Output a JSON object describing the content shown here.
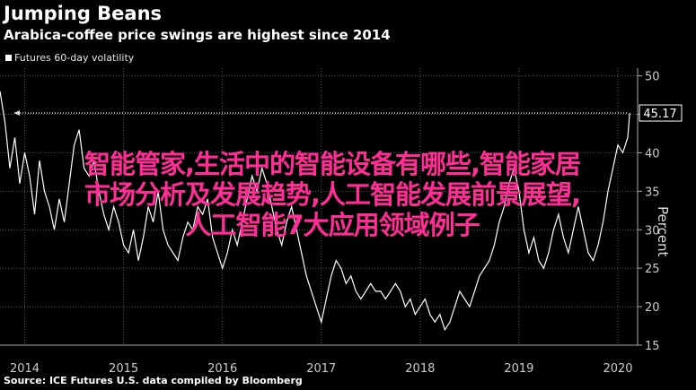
{
  "title": "Jumping Beans",
  "subtitle": "Arabica-coffee price swings are highest since 2014",
  "legend_label": "Futures 60-day volatility",
  "source": "Source: ICE Futures U.S. data compiled by Bloomberg",
  "overlay_lines": [
    "智能管家,生活中的智能设备有哪些,智能家居",
    "市场分析及发展趋势,人工智能发展前景展望,",
    "人工智能7大应用领域例子"
  ],
  "colors": {
    "background": "#000000",
    "line": "#ffffff",
    "overlay_text": "#ff2d95",
    "grid": "#5a5a5a"
  },
  "chart_data": {
    "type": "line",
    "title": "Jumping Beans",
    "subtitle": "Arabica-coffee price swings are highest since 2014",
    "ylabel": "Percent",
    "ylim": [
      15,
      51
    ],
    "yticks": [
      15,
      20,
      25,
      30,
      35,
      40,
      45,
      50
    ],
    "xlim": [
      2013.75,
      2020.2
    ],
    "xticks": [
      {
        "label": "2014",
        "x": 2014.0
      },
      {
        "label": "2015",
        "x": 2015.0
      },
      {
        "label": "2016",
        "x": 2016.0
      },
      {
        "label": "2017",
        "x": 2017.0
      },
      {
        "label": "2018",
        "x": 2018.0
      },
      {
        "label": "2019",
        "x": 2019.0
      },
      {
        "label": "2020",
        "x": 2020.0
      }
    ],
    "last_value_label": "45.17",
    "reference_line_value": 45.17,
    "series": [
      {
        "name": "Futures 60-day volatility",
        "x": [
          2013.75,
          2013.8,
          2013.85,
          2013.9,
          2013.95,
          2014.0,
          2014.05,
          2014.1,
          2014.15,
          2014.2,
          2014.25,
          2014.3,
          2014.35,
          2014.4,
          2014.45,
          2014.5,
          2014.55,
          2014.6,
          2014.65,
          2014.7,
          2014.75,
          2014.8,
          2014.85,
          2014.9,
          2014.95,
          2015.0,
          2015.05,
          2015.1,
          2015.15,
          2015.2,
          2015.25,
          2015.3,
          2015.35,
          2015.4,
          2015.45,
          2015.5,
          2015.55,
          2015.6,
          2015.65,
          2015.7,
          2015.75,
          2015.8,
          2015.85,
          2015.9,
          2015.95,
          2016.0,
          2016.05,
          2016.1,
          2016.15,
          2016.2,
          2016.25,
          2016.3,
          2016.35,
          2016.4,
          2016.45,
          2016.5,
          2016.55,
          2016.6,
          2016.65,
          2016.7,
          2016.75,
          2016.8,
          2016.85,
          2016.9,
          2016.95,
          2017.0,
          2017.05,
          2017.1,
          2017.15,
          2017.2,
          2017.25,
          2017.3,
          2017.35,
          2017.4,
          2017.45,
          2017.5,
          2017.55,
          2017.6,
          2017.65,
          2017.7,
          2017.75,
          2017.8,
          2017.85,
          2017.9,
          2017.95,
          2018.0,
          2018.05,
          2018.1,
          2018.15,
          2018.2,
          2018.25,
          2018.3,
          2018.35,
          2018.4,
          2018.45,
          2018.5,
          2018.55,
          2018.6,
          2018.65,
          2018.7,
          2018.75,
          2018.8,
          2018.85,
          2018.9,
          2018.95,
          2019.0,
          2019.05,
          2019.1,
          2019.15,
          2019.2,
          2019.25,
          2019.3,
          2019.35,
          2019.4,
          2019.45,
          2019.5,
          2019.55,
          2019.6,
          2019.65,
          2019.7,
          2019.75,
          2019.8,
          2019.85,
          2019.9,
          2019.95,
          2020.0,
          2020.05,
          2020.1,
          2020.12
        ],
        "values": [
          48,
          44,
          38,
          42,
          36,
          40,
          37,
          32,
          39,
          35,
          33,
          30,
          34,
          31,
          36,
          41,
          43,
          38,
          37,
          39,
          35,
          32,
          30,
          33,
          31,
          28,
          27,
          30,
          26,
          29,
          33,
          31,
          35,
          30,
          28,
          27,
          26,
          29,
          31,
          30,
          33,
          32,
          34,
          29,
          27,
          25,
          27,
          30,
          28,
          31,
          34,
          37,
          35,
          38,
          36,
          33,
          30,
          28,
          31,
          33,
          30,
          27,
          24,
          22,
          20,
          18,
          21,
          24,
          26,
          25,
          23,
          24,
          22,
          21,
          22,
          23,
          22,
          22,
          21,
          22,
          23,
          22,
          20,
          21,
          19,
          20,
          21,
          19,
          18,
          19,
          17,
          18,
          20,
          22,
          21,
          20,
          22,
          24,
          25,
          26,
          28,
          31,
          33,
          36,
          38,
          35,
          30,
          27,
          29,
          26,
          25,
          27,
          30,
          32,
          29,
          27,
          30,
          33,
          30,
          27,
          26,
          28,
          31,
          35,
          38,
          41,
          40,
          42,
          45.17
        ]
      }
    ]
  }
}
